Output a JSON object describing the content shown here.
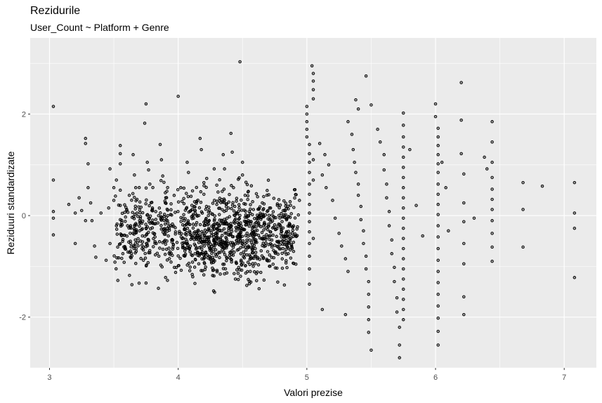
{
  "chart_data": {
    "type": "scatter",
    "title": "Rezidurile",
    "subtitle": "User_Count ~ Platform + Genre",
    "xlabel": "Valori prezise",
    "ylabel": "Reziduuri standardizate",
    "xlim": [
      2.85,
      7.25
    ],
    "ylim": [
      -3.0,
      3.5
    ],
    "x_ticks": [
      3,
      4,
      5,
      6,
      7
    ],
    "y_ticks": [
      -2,
      0,
      2
    ],
    "grid": true,
    "background": "#ebebeb",
    "grid_color": "#ffffff",
    "point_color": "#000000",
    "points": [
      [
        3.03,
        2.15
      ],
      [
        3.03,
        0.7
      ],
      [
        3.03,
        0.08
      ],
      [
        3.03,
        -0.05
      ],
      [
        3.03,
        -0.38
      ],
      [
        3.15,
        0.22
      ],
      [
        3.2,
        0.05
      ],
      [
        3.2,
        -0.55
      ],
      [
        3.23,
        0.35
      ],
      [
        3.25,
        0.1
      ],
      [
        3.28,
        -0.1
      ],
      [
        3.28,
        1.52
      ],
      [
        3.28,
        1.42
      ],
      [
        3.3,
        1.02
      ],
      [
        3.3,
        0.55
      ],
      [
        3.32,
        0.25
      ],
      [
        3.33,
        -0.1
      ],
      [
        3.35,
        -0.6
      ],
      [
        3.36,
        -0.82
      ],
      [
        3.4,
        0.05
      ],
      [
        3.44,
        -0.88
      ],
      [
        3.46,
        0.15
      ],
      [
        3.47,
        0.92
      ],
      [
        3.47,
        -0.55
      ],
      [
        3.5,
        0.55
      ],
      [
        3.5,
        0.3
      ],
      [
        3.52,
        0.7
      ],
      [
        3.52,
        -0.2
      ],
      [
        3.53,
        -0.62
      ],
      [
        3.55,
        1.38
      ],
      [
        3.55,
        1.22
      ],
      [
        3.55,
        1.02
      ],
      [
        3.55,
        0.5
      ],
      [
        3.55,
        0.2
      ],
      [
        3.55,
        -0.08
      ],
      [
        3.56,
        -0.38
      ],
      [
        3.57,
        -0.75
      ],
      [
        3.58,
        -0.92
      ],
      [
        3.6,
        0.12
      ],
      [
        3.62,
        0.4
      ],
      [
        3.63,
        -0.2
      ],
      [
        3.63,
        -0.55
      ],
      [
        3.65,
        1.2
      ],
      [
        3.66,
        0.8
      ],
      [
        3.67,
        0.55
      ],
      [
        3.68,
        0.32
      ],
      [
        3.68,
        0.05
      ],
      [
        3.7,
        -0.1
      ],
      [
        3.7,
        -0.3
      ],
      [
        3.72,
        -0.65
      ],
      [
        3.73,
        -0.88
      ],
      [
        3.74,
        1.82
      ],
      [
        3.75,
        2.2
      ],
      [
        3.76,
        1.05
      ],
      [
        3.77,
        0.9
      ],
      [
        3.78,
        0.62
      ],
      [
        3.8,
        0.15
      ],
      [
        3.8,
        -0.15
      ],
      [
        3.82,
        -0.42
      ],
      [
        3.83,
        -0.55
      ],
      [
        3.85,
        -0.8
      ],
      [
        3.86,
        1.4
      ],
      [
        3.87,
        1.1
      ],
      [
        3.88,
        0.78
      ],
      [
        3.9,
        0.45
      ],
      [
        3.9,
        0.25
      ],
      [
        3.92,
        0.0
      ],
      [
        3.93,
        -0.25
      ],
      [
        3.95,
        -0.48
      ],
      [
        3.96,
        -0.62
      ],
      [
        3.97,
        -1.02
      ],
      [
        3.98,
        -1.12
      ],
      [
        4.0,
        2.35
      ],
      [
        4.02,
        0.55
      ],
      [
        4.03,
        0.28
      ],
      [
        4.05,
        -0.2
      ],
      [
        4.05,
        -0.65
      ],
      [
        4.07,
        1.05
      ],
      [
        4.08,
        0.85
      ],
      [
        4.1,
        0.38
      ],
      [
        4.1,
        0.1
      ],
      [
        4.12,
        -0.05
      ],
      [
        4.13,
        -0.32
      ],
      [
        4.15,
        -0.72
      ],
      [
        4.16,
        -0.95
      ],
      [
        4.17,
        1.52
      ],
      [
        4.18,
        1.3
      ],
      [
        4.2,
        0.65
      ],
      [
        4.2,
        0.42
      ],
      [
        4.22,
        0.18
      ],
      [
        4.23,
        -0.12
      ],
      [
        4.24,
        -0.42
      ],
      [
        4.25,
        -0.82
      ],
      [
        4.27,
        -1.08
      ],
      [
        4.28,
        0.92
      ],
      [
        4.3,
        0.6
      ],
      [
        4.3,
        0.22
      ],
      [
        4.32,
        -0.2
      ],
      [
        4.33,
        -0.55
      ],
      [
        4.35,
        1.2
      ],
      [
        4.36,
        0.92
      ],
      [
        4.36,
        0.3
      ],
      [
        4.38,
        -0.05
      ],
      [
        4.38,
        -0.5
      ],
      [
        4.4,
        -0.78
      ],
      [
        4.41,
        1.62
      ],
      [
        4.42,
        1.25
      ],
      [
        4.43,
        0.55
      ],
      [
        4.44,
        0.18
      ],
      [
        4.45,
        -0.3
      ],
      [
        4.46,
        -0.68
      ],
      [
        4.47,
        -1.02
      ],
      [
        4.48,
        3.03
      ],
      [
        4.5,
        1.05
      ],
      [
        4.5,
        0.8
      ],
      [
        4.52,
        0.4
      ],
      [
        4.53,
        -0.18
      ],
      [
        4.55,
        -0.62
      ],
      [
        4.56,
        -1.1
      ],
      [
        5.0,
        2.15
      ],
      [
        5.0,
        2.0
      ],
      [
        5.0,
        1.85
      ],
      [
        5.0,
        1.7
      ],
      [
        5.0,
        1.55
      ],
      [
        5.02,
        1.4
      ],
      [
        5.02,
        1.22
      ],
      [
        5.02,
        1.05
      ],
      [
        5.02,
        0.85
      ],
      [
        5.02,
        0.62
      ],
      [
        5.02,
        0.42
      ],
      [
        5.02,
        0.22
      ],
      [
        5.02,
        0.05
      ],
      [
        5.02,
        -0.12
      ],
      [
        5.02,
        -0.32
      ],
      [
        5.02,
        -0.55
      ],
      [
        5.02,
        -0.8
      ],
      [
        5.02,
        -1.05
      ],
      [
        5.02,
        -1.35
      ],
      [
        5.04,
        2.95
      ],
      [
        5.05,
        2.8
      ],
      [
        5.05,
        2.65
      ],
      [
        5.05,
        2.48
      ],
      [
        5.05,
        2.3
      ],
      [
        5.05,
        1.1
      ],
      [
        5.05,
        0.7
      ],
      [
        5.05,
        -0.45
      ],
      [
        5.1,
        1.42
      ],
      [
        5.12,
        0.8
      ],
      [
        5.14,
        1.2
      ],
      [
        5.15,
        0.55
      ],
      [
        5.17,
        1.0
      ],
      [
        5.2,
        0.3
      ],
      [
        5.22,
        -0.05
      ],
      [
        5.25,
        -0.35
      ],
      [
        5.27,
        -0.6
      ],
      [
        5.3,
        -0.85
      ],
      [
        5.32,
        -1.1
      ],
      [
        5.12,
        -1.85
      ],
      [
        5.3,
        -1.95
      ],
      [
        5.32,
        1.85
      ],
      [
        5.35,
        1.6
      ],
      [
        5.36,
        1.3
      ],
      [
        5.37,
        1.05
      ],
      [
        5.38,
        0.85
      ],
      [
        5.4,
        0.62
      ],
      [
        5.4,
        0.4
      ],
      [
        5.42,
        0.18
      ],
      [
        5.42,
        -0.08
      ],
      [
        5.44,
        -0.3
      ],
      [
        5.44,
        -0.55
      ],
      [
        5.46,
        -0.8
      ],
      [
        5.46,
        -1.05
      ],
      [
        5.48,
        -1.3
      ],
      [
        5.48,
        -1.55
      ],
      [
        5.48,
        -1.8
      ],
      [
        5.48,
        -2.05
      ],
      [
        5.48,
        -2.3
      ],
      [
        5.5,
        -2.65
      ],
      [
        5.38,
        2.28
      ],
      [
        5.4,
        2.1
      ],
      [
        5.46,
        2.75
      ],
      [
        5.5,
        2.18
      ],
      [
        5.55,
        1.7
      ],
      [
        5.57,
        1.45
      ],
      [
        5.6,
        1.2
      ],
      [
        5.6,
        0.9
      ],
      [
        5.62,
        0.62
      ],
      [
        5.62,
        0.35
      ],
      [
        5.64,
        0.08
      ],
      [
        5.64,
        -0.2
      ],
      [
        5.66,
        -0.48
      ],
      [
        5.66,
        -0.75
      ],
      [
        5.68,
        -1.02
      ],
      [
        5.68,
        -1.3
      ],
      [
        5.7,
        -1.62
      ],
      [
        5.7,
        -1.9
      ],
      [
        5.72,
        -2.2
      ],
      [
        5.72,
        -2.55
      ],
      [
        5.72,
        -2.8
      ],
      [
        5.75,
        2.02
      ],
      [
        5.75,
        1.78
      ],
      [
        5.75,
        1.55
      ],
      [
        5.75,
        1.35
      ],
      [
        5.75,
        1.15
      ],
      [
        5.75,
        0.95
      ],
      [
        5.75,
        0.75
      ],
      [
        5.75,
        0.55
      ],
      [
        5.75,
        0.35
      ],
      [
        5.75,
        0.15
      ],
      [
        5.75,
        -0.05
      ],
      [
        5.75,
        -0.25
      ],
      [
        5.75,
        -0.45
      ],
      [
        5.75,
        -0.65
      ],
      [
        5.75,
        -0.85
      ],
      [
        5.75,
        -1.05
      ],
      [
        5.75,
        -1.25
      ],
      [
        5.75,
        -1.45
      ],
      [
        5.75,
        -1.65
      ],
      [
        5.75,
        -1.85
      ],
      [
        5.75,
        -2.05
      ],
      [
        5.8,
        1.3
      ],
      [
        5.85,
        0.2
      ],
      [
        5.9,
        -0.4
      ],
      [
        6.0,
        2.2
      ],
      [
        6.0,
        1.95
      ],
      [
        6.02,
        1.72
      ],
      [
        6.02,
        1.55
      ],
      [
        6.02,
        1.38
      ],
      [
        6.02,
        1.2
      ],
      [
        6.02,
        1.02
      ],
      [
        6.02,
        0.85
      ],
      [
        6.02,
        0.62
      ],
      [
        6.02,
        0.42
      ],
      [
        6.02,
        0.22
      ],
      [
        6.02,
        0.02
      ],
      [
        6.02,
        -0.2
      ],
      [
        6.02,
        -0.42
      ],
      [
        6.02,
        -0.65
      ],
      [
        6.02,
        -0.88
      ],
      [
        6.02,
        -1.1
      ],
      [
        6.02,
        -1.32
      ],
      [
        6.02,
        -1.55
      ],
      [
        6.02,
        -1.78
      ],
      [
        6.02,
        -2.02
      ],
      [
        6.02,
        -2.28
      ],
      [
        6.02,
        -2.55
      ],
      [
        6.05,
        1.05
      ],
      [
        6.08,
        0.55
      ],
      [
        6.1,
        -0.3
      ],
      [
        6.2,
        2.62
      ],
      [
        6.2,
        1.88
      ],
      [
        6.2,
        1.22
      ],
      [
        6.22,
        0.82
      ],
      [
        6.22,
        0.25
      ],
      [
        6.22,
        -0.12
      ],
      [
        6.22,
        -0.55
      ],
      [
        6.22,
        -0.95
      ],
      [
        6.22,
        -1.6
      ],
      [
        6.22,
        -1.95
      ],
      [
        6.3,
        -0.05
      ],
      [
        6.44,
        1.85
      ],
      [
        6.44,
        1.45
      ],
      [
        6.44,
        1.05
      ],
      [
        6.44,
        0.75
      ],
      [
        6.44,
        0.52
      ],
      [
        6.44,
        0.32
      ],
      [
        6.44,
        0.12
      ],
      [
        6.44,
        -0.1
      ],
      [
        6.44,
        -0.35
      ],
      [
        6.44,
        -0.62
      ],
      [
        6.44,
        -0.9
      ],
      [
        6.38,
        1.15
      ],
      [
        6.4,
        0.92
      ],
      [
        6.68,
        0.65
      ],
      [
        6.68,
        0.12
      ],
      [
        6.68,
        -0.62
      ],
      [
        6.83,
        0.58
      ],
      [
        7.08,
        0.65
      ],
      [
        7.08,
        0.05
      ],
      [
        7.08,
        -0.25
      ],
      [
        7.08,
        -1.22
      ]
    ],
    "dense_bands": [
      [
        3.5,
        4.95,
        -1.7,
        1.0
      ],
      [
        3.55,
        4.9,
        -1.3,
        0.6
      ],
      [
        4.0,
        4.9,
        -1.5,
        0.9
      ],
      [
        4.2,
        4.6,
        -1.65,
        0.5
      ]
    ]
  }
}
